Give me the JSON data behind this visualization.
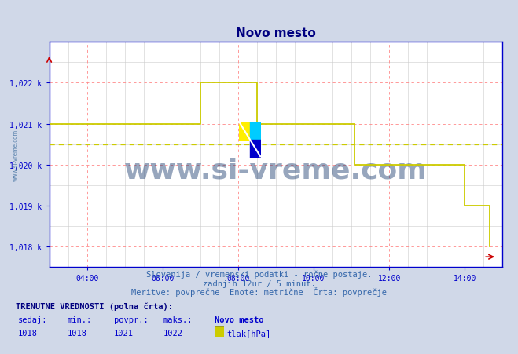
{
  "title": "Novo mesto",
  "title_color": "#000080",
  "bg_color": "#d0d8e8",
  "plot_bg_color": "#ffffff",
  "line_color": "#cccc00",
  "avg_line_color": "#cccc00",
  "grid_major_color": "#ff8888",
  "grid_minor_color": "#cccccc",
  "axis_color": "#0000cc",
  "tick_color": "#0000cc",
  "spine_color": "#0000cc",
  "arrow_color": "#cc0000",
  "yticks": [
    1018,
    1019,
    1020,
    1021,
    1022
  ],
  "xlabel_times": [
    "04:00",
    "06:00",
    "08:00",
    "10:00",
    "12:00",
    "14:00"
  ],
  "x_major_ticks": [
    4,
    6,
    8,
    10,
    12,
    14
  ],
  "xlim": [
    3.0,
    14.85
  ],
  "ylim": [
    1017.75,
    1022.7
  ],
  "footer_line1": "Slovenija / vremenski podatki - ročne postaje.",
  "footer_line2": "zadnjih 12ur / 5 minut.",
  "footer_line3": "Meritve: povprečne  Enote: metrične  Črta: povprečje",
  "footer_color": "#3366aa",
  "watermark": "www.si-vreme.com",
  "watermark_color": "#1a3a6e",
  "watermark_alpha": 0.45,
  "watermark_fontsize": 26,
  "left_watermark": "www.si-vreme.com",
  "left_watermark_color": "#336699",
  "label_trenutne": "TRENUTNE VREDNOSTI (polna črta):",
  "label_sedaj": "sedaj:",
  "label_min": "min.:",
  "label_povpr": "povpr.:",
  "label_maks": "maks.:",
  "val_sedaj": "1018",
  "val_min": "1018",
  "val_povpr": "1021",
  "val_maks": "1022",
  "station_name": "Novo mesto",
  "unit_label": "tlak[hPa]",
  "avg_value": 1020.5,
  "step_x": [
    3.0,
    6.83,
    7.0,
    7.5,
    8.08,
    8.5,
    11.08,
    12.75,
    13.42,
    14.0,
    14.08,
    14.58,
    14.67
  ],
  "step_y": [
    1021,
    1021,
    1022,
    1022,
    1022,
    1021,
    1020,
    1020,
    1020,
    1019,
    1019,
    1019,
    1018
  ],
  "logo_yellow": "#ffee00",
  "logo_cyan": "#00ccff",
  "logo_blue": "#0000cc"
}
